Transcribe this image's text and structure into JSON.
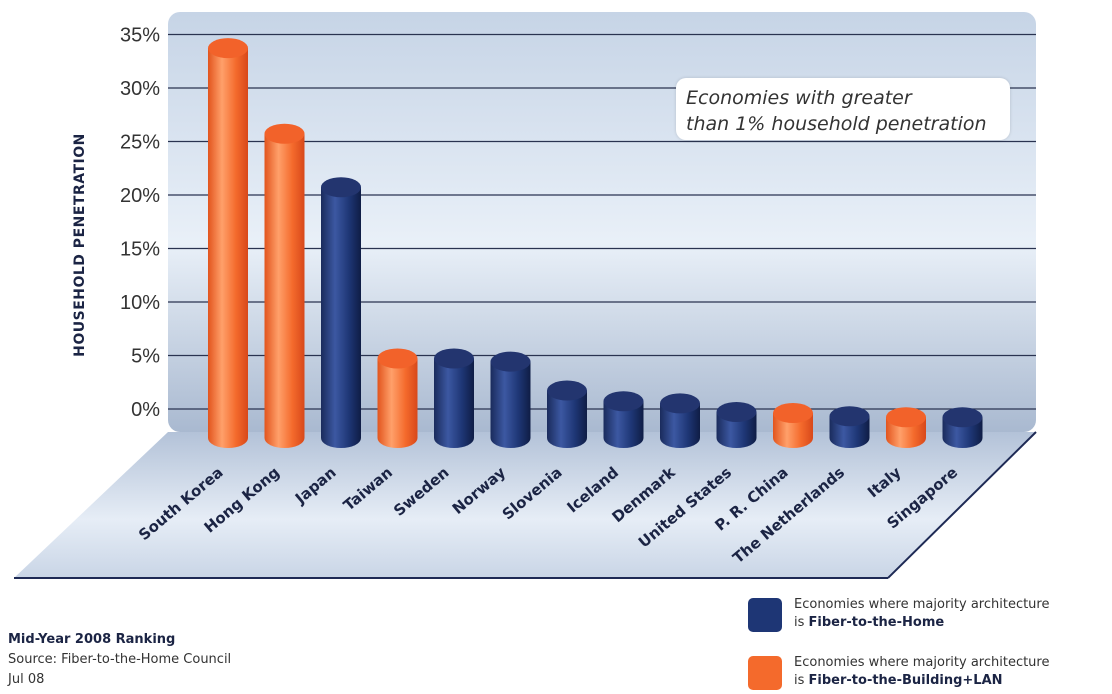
{
  "chart_data": {
    "type": "bar",
    "categories": [
      "South Korea",
      "Hong Kong",
      "Japan",
      "Taiwan",
      "Sweden",
      "Norway",
      "Slovenia",
      "Iceland",
      "Denmark",
      "United States",
      "P. R. China",
      "The Netherlands",
      "Italy",
      "Singapore"
    ],
    "values": [
      35.5,
      27.5,
      22.5,
      6.5,
      6.5,
      6.2,
      3.5,
      2.5,
      2.3,
      1.5,
      1.4,
      1.1,
      1.0,
      1.0
    ],
    "architecture": [
      "FTTB+LAN",
      "FTTB+LAN",
      "FTTH",
      "FTTB+LAN",
      "FTTH",
      "FTTH",
      "FTTH",
      "FTTH",
      "FTTH",
      "FTTH",
      "FTTB+LAN",
      "FTTH",
      "FTTB+LAN",
      "FTTH"
    ],
    "ylabel": "HOUSEHOLD PENETRATION",
    "yticks": [
      "0%",
      "5%",
      "10%",
      "15%",
      "20%",
      "25%",
      "30%",
      "35%"
    ],
    "ylim": [
      0,
      35
    ],
    "grid": true,
    "colors": {
      "FTTH": "#1e3675",
      "FTTB+LAN": "#f46a2c"
    }
  },
  "annotation": {
    "line1": "Economies with greater",
    "line2": "than 1% household penetration"
  },
  "footer": {
    "title": "Mid-Year 2008 Ranking",
    "source": "Source: Fiber-to-the-Home Council",
    "date": "Jul 08"
  },
  "legend": {
    "ftth": {
      "text": "Economies where majority architecture",
      "prefix": "is ",
      "bold": "Fiber-to-the-Home"
    },
    "fttb": {
      "text": "Economies where majority architecture",
      "prefix": "is ",
      "bold": "Fiber-to-the-Building+LAN"
    }
  }
}
